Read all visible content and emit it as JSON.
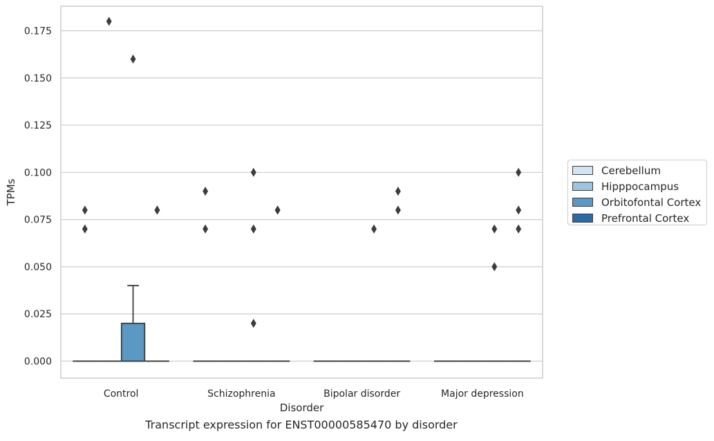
{
  "chart_data": {
    "type": "box",
    "title": "",
    "caption": "Transcript expression for ENST00000585470 by disorder",
    "xlabel": "Disorder",
    "ylabel": "TPMs",
    "categories": [
      "Control",
      "Schizophrenia",
      "Bipolar disorder",
      "Major depression"
    ],
    "ylim": [
      -0.009,
      0.188
    ],
    "yticks": [
      "0.000",
      "0.025",
      "0.050",
      "0.075",
      "0.100",
      "0.125",
      "0.150",
      "0.175"
    ],
    "ytick_values": [
      0,
      0.025,
      0.05,
      0.075,
      0.1,
      0.125,
      0.15,
      0.175
    ],
    "grid": "horizontal",
    "legend_position": "right",
    "series": [
      {
        "name": "Cerebellum",
        "color": "#d4e3f1",
        "boxes": [
          {
            "q1": 0,
            "median": 0,
            "q3": 0,
            "whisker_low": 0,
            "whisker_high": 0,
            "outliers": [
              0.07,
              0.08
            ]
          },
          {
            "q1": 0,
            "median": 0,
            "q3": 0,
            "whisker_low": 0,
            "whisker_high": 0,
            "outliers": [
              0.07,
              0.09
            ]
          },
          {
            "q1": 0,
            "median": 0,
            "q3": 0,
            "whisker_low": 0,
            "whisker_high": 0,
            "outliers": []
          },
          {
            "q1": 0,
            "median": 0,
            "q3": 0,
            "whisker_low": 0,
            "whisker_high": 0,
            "outliers": []
          }
        ]
      },
      {
        "name": "Hipppocampus",
        "color": "#9dc3de",
        "boxes": [
          {
            "q1": 0,
            "median": 0,
            "q3": 0,
            "whisker_low": 0,
            "whisker_high": 0,
            "outliers": [
              0.18
            ]
          },
          {
            "q1": 0,
            "median": 0,
            "q3": 0,
            "whisker_low": 0,
            "whisker_high": 0,
            "outliers": []
          },
          {
            "q1": 0,
            "median": 0,
            "q3": 0,
            "whisker_low": 0,
            "whisker_high": 0,
            "outliers": []
          },
          {
            "q1": 0,
            "median": 0,
            "q3": 0,
            "whisker_low": 0,
            "whisker_high": 0,
            "outliers": []
          }
        ]
      },
      {
        "name": "Orbitofontal Cortex",
        "color": "#5b98c3",
        "boxes": [
          {
            "q1": 0,
            "median": 0,
            "q3": 0.02,
            "whisker_low": 0,
            "whisker_high": 0.04,
            "outliers": [
              0.16
            ]
          },
          {
            "q1": 0,
            "median": 0,
            "q3": 0,
            "whisker_low": 0,
            "whisker_high": 0,
            "outliers": [
              0.02,
              0.07,
              0.1
            ]
          },
          {
            "q1": 0,
            "median": 0,
            "q3": 0,
            "whisker_low": 0,
            "whisker_high": 0,
            "outliers": [
              0.07
            ]
          },
          {
            "q1": 0,
            "median": 0,
            "q3": 0,
            "whisker_low": 0,
            "whisker_high": 0,
            "outliers": [
              0.05,
              0.07
            ]
          }
        ]
      },
      {
        "name": "Prefrontal Cortex",
        "color": "#2b6aa5",
        "boxes": [
          {
            "q1": 0,
            "median": 0,
            "q3": 0,
            "whisker_low": 0,
            "whisker_high": 0,
            "outliers": [
              0.08,
              0.08
            ]
          },
          {
            "q1": 0,
            "median": 0,
            "q3": 0,
            "whisker_low": 0,
            "whisker_high": 0,
            "outliers": [
              0.08,
              0.08
            ]
          },
          {
            "q1": 0,
            "median": 0,
            "q3": 0,
            "whisker_low": 0,
            "whisker_high": 0,
            "outliers": [
              0.08,
              0.09
            ]
          },
          {
            "q1": 0,
            "median": 0,
            "q3": 0,
            "whisker_low": 0,
            "whisker_high": 0,
            "outliers": [
              0.07,
              0.08,
              0.1
            ]
          }
        ]
      }
    ]
  }
}
